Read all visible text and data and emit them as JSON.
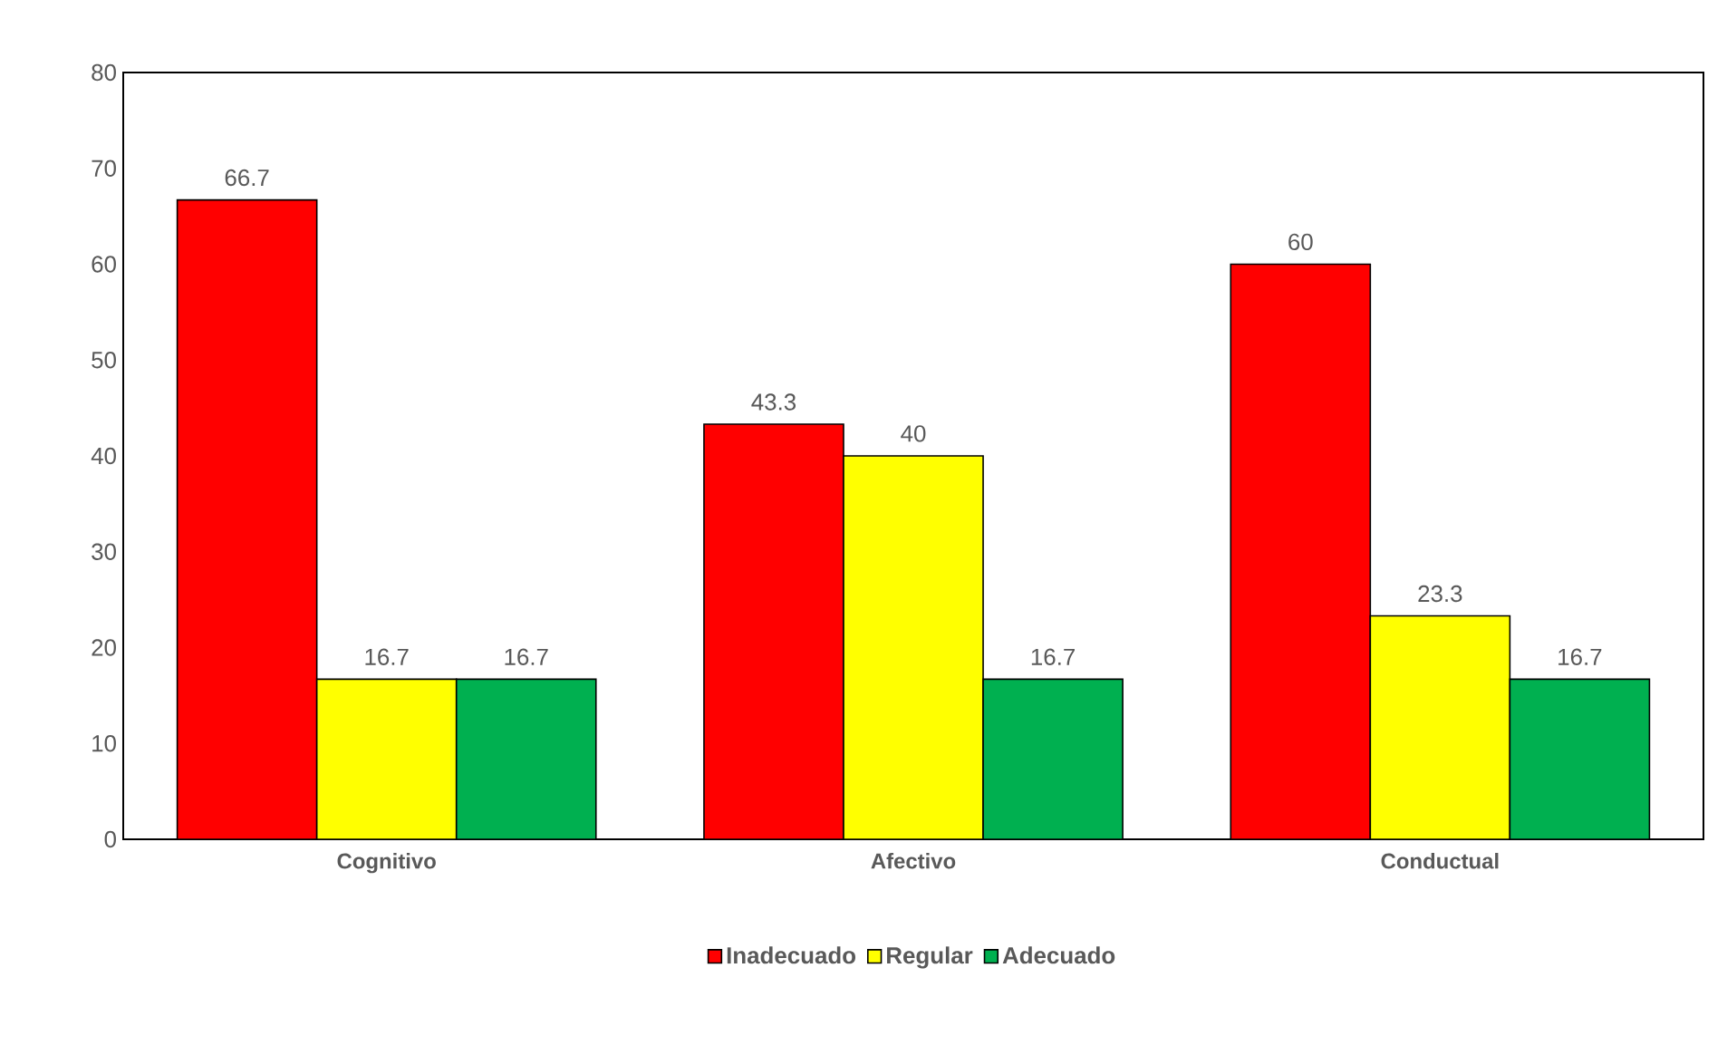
{
  "chart_data": {
    "type": "bar",
    "categories": [
      "Cognitivo",
      "Afectivo",
      "Conductual"
    ],
    "series": [
      {
        "name": "Inadecuado",
        "color": "#ff0000",
        "values": [
          66.7,
          43.3,
          60
        ]
      },
      {
        "name": "Regular",
        "color": "#ffff00",
        "values": [
          16.7,
          40,
          23.3
        ]
      },
      {
        "name": "Adecuado",
        "color": "#00b050",
        "values": [
          16.7,
          16.7,
          16.7
        ]
      }
    ],
    "ylim": [
      0,
      80
    ],
    "yticks": [
      0,
      10,
      20,
      30,
      40,
      50,
      60,
      70,
      80
    ],
    "data_labels": true,
    "grid": false,
    "legend": "bottom"
  }
}
